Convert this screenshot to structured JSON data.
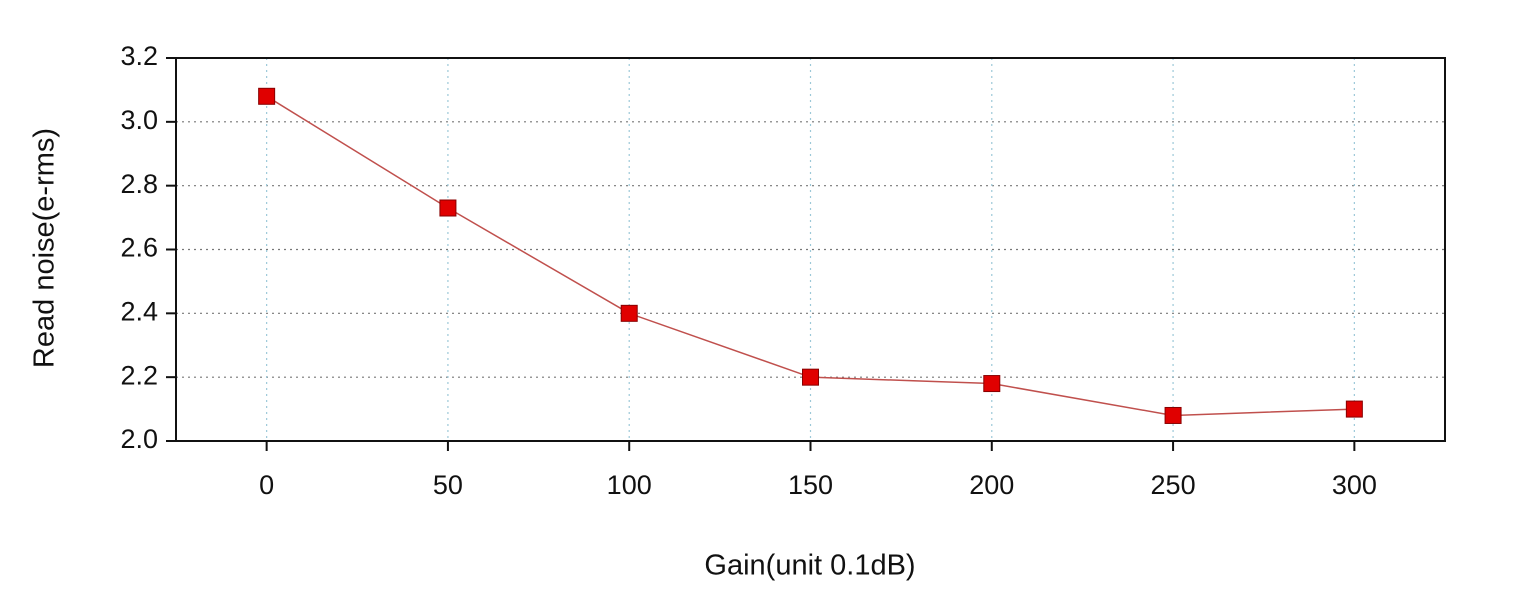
{
  "chart_data": {
    "type": "line",
    "xlabel": "Gain(unit 0.1dB)",
    "ylabel": "Read noise(e-rms)",
    "x": [
      0,
      50,
      100,
      150,
      200,
      250,
      300
    ],
    "values": [
      3.08,
      2.73,
      2.4,
      2.2,
      2.18,
      2.08,
      2.1
    ],
    "color": "#e00000",
    "line_color": "#c0504d",
    "xlim": [
      -25,
      325
    ],
    "ylim": [
      2.0,
      3.2
    ],
    "xticks": [
      0,
      50,
      100,
      150,
      200,
      250,
      300
    ],
    "yticks": [
      {
        "value": 2.0,
        "label": "2.0"
      },
      2.2,
      2.4,
      2.6,
      2.8,
      {
        "value": 3.0,
        "label": "3.0"
      },
      3.2
    ],
    "grid": true
  }
}
